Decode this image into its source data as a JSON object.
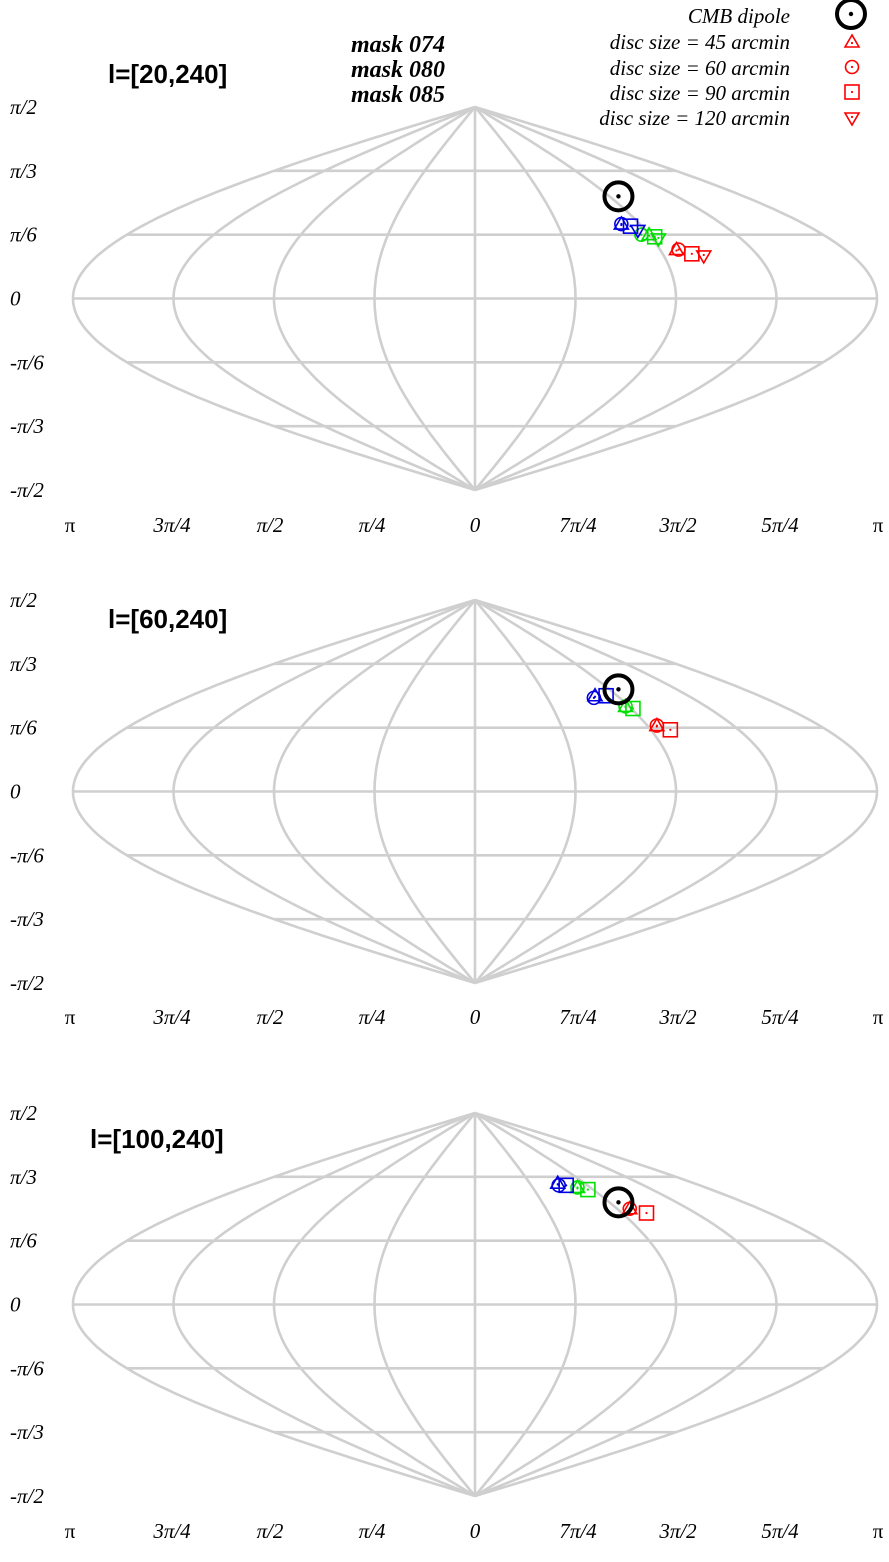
{
  "legend": {
    "masks": [
      {
        "label": "mask 074",
        "color": "#ff0000"
      },
      {
        "label": "mask 080",
        "color": "#00e000"
      },
      {
        "label": "mask 085",
        "color": "#0000e0"
      }
    ],
    "symbols": [
      {
        "label": "CMB dipole",
        "marker": "dipole"
      },
      {
        "label": "disc size = 45 arcmin",
        "marker": "triangle-up"
      },
      {
        "label": "disc size = 60 arcmin",
        "marker": "circle-dot"
      },
      {
        "label": "disc size = 90 arcmin",
        "marker": "square-dot"
      },
      {
        "label": "disc size = 120 arcmin",
        "marker": "triangle-down"
      }
    ]
  },
  "chart_data": [
    {
      "type": "scatter",
      "projection": "sinusoidal",
      "title": "l=[20,240]",
      "xlabel": "",
      "ylabel": "",
      "x_tick_labels": [
        "π",
        "3π/4",
        "π/2",
        "π/4",
        "0",
        "7π/4",
        "3π/2",
        "5π/4",
        "π"
      ],
      "y_tick_labels": [
        "π/2",
        "π/3",
        "π/6",
        "0",
        "-π/6",
        "-π/3",
        "-π/2"
      ],
      "dipole": {
        "lon_deg": 264,
        "lat_deg": 48
      },
      "series": [
        {
          "name": "mask 074",
          "color": "#ff0000",
          "points": [
            {
              "marker": "triangle-up",
              "lon_deg": 262,
              "lat_deg": 23
            },
            {
              "marker": "circle-dot",
              "lon_deg": 261,
              "lat_deg": 23
            },
            {
              "marker": "square-dot",
              "lon_deg": 256,
              "lat_deg": 21
            },
            {
              "marker": "triangle-down",
              "lon_deg": 251,
              "lat_deg": 20
            }
          ]
        },
        {
          "name": "mask 080",
          "color": "#00e000",
          "points": [
            {
              "marker": "triangle-up",
              "lon_deg": 270,
              "lat_deg": 30
            },
            {
              "marker": "circle-dot",
              "lon_deg": 274,
              "lat_deg": 30
            },
            {
              "marker": "square-dot",
              "lon_deg": 268,
              "lat_deg": 29
            },
            {
              "marker": "triangle-down",
              "lon_deg": 267,
              "lat_deg": 28
            }
          ]
        },
        {
          "name": "mask 085",
          "color": "#0000e0",
          "points": [
            {
              "marker": "triangle-up",
              "lon_deg": 280,
              "lat_deg": 35
            },
            {
              "marker": "circle-dot",
              "lon_deg": 280,
              "lat_deg": 35
            },
            {
              "marker": "square-dot",
              "lon_deg": 276,
              "lat_deg": 34
            },
            {
              "marker": "triangle-down",
              "lon_deg": 274,
              "lat_deg": 32
            }
          ]
        }
      ]
    },
    {
      "type": "scatter",
      "projection": "sinusoidal",
      "title": "l=[60,240]",
      "xlabel": "",
      "ylabel": "",
      "x_tick_labels": [
        "π",
        "3π/4",
        "π/2",
        "π/4",
        "0",
        "7π/4",
        "3π/2",
        "5π/4",
        "π"
      ],
      "y_tick_labels": [
        "π/2",
        "π/3",
        "π/6",
        "0",
        "-π/6",
        "-π/3",
        "-π/2"
      ],
      "dipole": {
        "lon_deg": 264,
        "lat_deg": 48
      },
      "series": [
        {
          "name": "mask 074",
          "color": "#ff0000",
          "points": [
            {
              "marker": "triangle-up",
              "lon_deg": 265,
              "lat_deg": 31
            },
            {
              "marker": "circle-dot",
              "lon_deg": 265,
              "lat_deg": 31
            },
            {
              "marker": "square-dot",
              "lon_deg": 260,
              "lat_deg": 29
            }
          ]
        },
        {
          "name": "mask 080",
          "color": "#00e000",
          "points": [
            {
              "marker": "triangle-up",
              "lon_deg": 272,
              "lat_deg": 40
            },
            {
              "marker": "circle-dot",
              "lon_deg": 272,
              "lat_deg": 40
            },
            {
              "marker": "square-dot",
              "lon_deg": 269,
              "lat_deg": 39
            }
          ]
        },
        {
          "name": "mask 085",
          "color": "#0000e0",
          "points": [
            {
              "marker": "triangle-up",
              "lon_deg": 284,
              "lat_deg": 45
            },
            {
              "marker": "circle-dot",
              "lon_deg": 286,
              "lat_deg": 44
            },
            {
              "marker": "square-dot",
              "lon_deg": 277,
              "lat_deg": 45
            }
          ]
        }
      ]
    },
    {
      "type": "scatter",
      "projection": "sinusoidal",
      "title": "l=[100,240]",
      "xlabel": "",
      "ylabel": "",
      "x_tick_labels": [
        "π",
        "3π/4",
        "π/2",
        "π/4",
        "0",
        "7π/4",
        "3π/2",
        "5π/4",
        "π"
      ],
      "y_tick_labels": [
        "π/2",
        "π/3",
        "π/6",
        "0",
        "-π/6",
        "-π/3",
        "-π/2"
      ],
      "dipole": {
        "lon_deg": 264,
        "lat_deg": 48
      },
      "series": [
        {
          "name": "mask 074",
          "color": "#ff0000",
          "points": [
            {
              "marker": "triangle-up",
              "lon_deg": 262,
              "lat_deg": 45
            },
            {
              "marker": "circle-dot",
              "lon_deg": 262,
              "lat_deg": 45
            },
            {
              "marker": "square-dot",
              "lon_deg": 255,
              "lat_deg": 43
            }
          ]
        },
        {
          "name": "mask 080",
          "color": "#00e000",
          "points": [
            {
              "marker": "triangle-up",
              "lon_deg": 280,
              "lat_deg": 55
            },
            {
              "marker": "circle-dot",
              "lon_deg": 280,
              "lat_deg": 55
            },
            {
              "marker": "square-dot",
              "lon_deg": 274,
              "lat_deg": 54
            }
          ]
        },
        {
          "name": "mask 085",
          "color": "#0000e0",
          "points": [
            {
              "marker": "triangle-up",
              "lon_deg": 292,
              "lat_deg": 57
            },
            {
              "marker": "circle-dot",
              "lon_deg": 293,
              "lat_deg": 56
            },
            {
              "marker": "square-dot",
              "lon_deg": 287,
              "lat_deg": 56
            }
          ]
        }
      ]
    }
  ]
}
